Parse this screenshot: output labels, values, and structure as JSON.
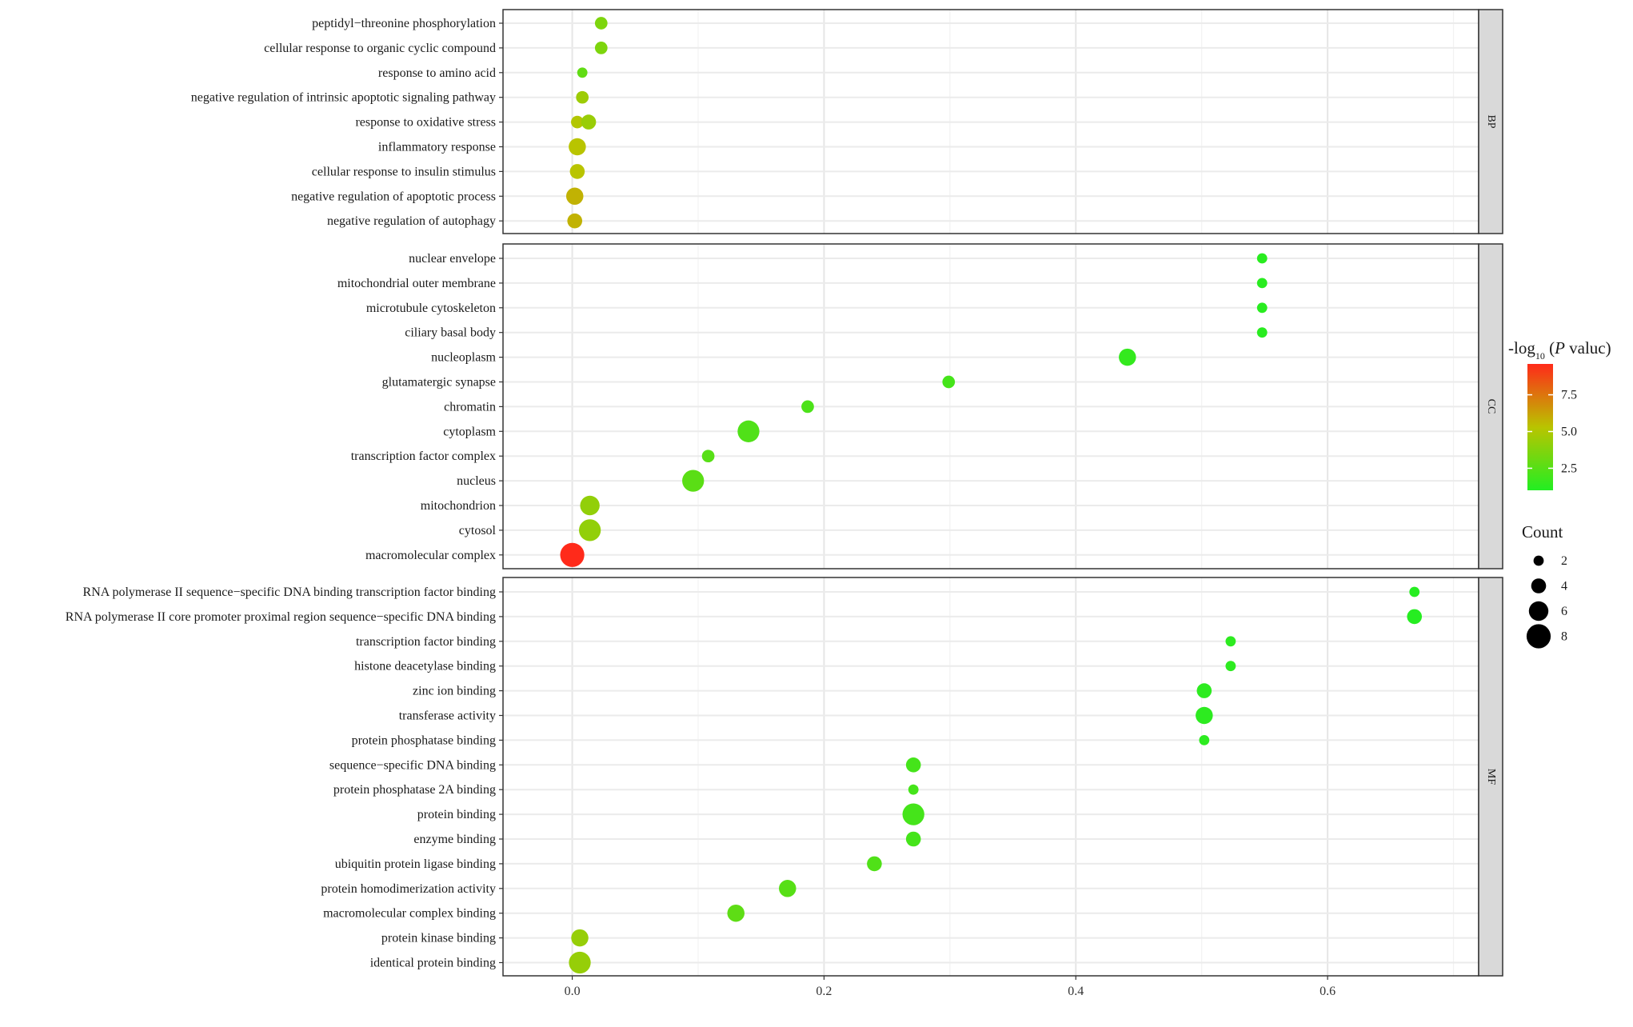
{
  "chart_data": {
    "type": "scatter",
    "xlim": [
      -0.055,
      0.72
    ],
    "x_ticks": [
      0.0,
      0.2,
      0.4,
      0.6
    ],
    "x_tick_labels": [
      "0.0",
      "0.2",
      "0.4",
      "0.6"
    ],
    "grid": true,
    "legend_placement": "right",
    "color_legend": {
      "title_prefix": "-log",
      "title_subscript": "10",
      "title_open": " (",
      "title_italic": "P",
      "title_rest": " valuc)",
      "range": [
        1.0,
        9.6
      ],
      "ticks": [
        2.5,
        5.0,
        7.5
      ],
      "tick_labels": [
        "2.5",
        "5.0",
        "7.5"
      ],
      "low_color": "#22ee22",
      "mid_color": "#b9c400",
      "high_color": "#ff2a1a"
    },
    "size_legend": {
      "title": "Count",
      "values": [
        2,
        4,
        6,
        8
      ],
      "labels": [
        "2",
        "4",
        "6",
        "8"
      ]
    },
    "panels": [
      {
        "strip": "BP",
        "terms": [
          {
            "label": "peptidyl−threonine phosphorylation",
            "points": [
              {
                "x": 0.023,
                "count": 3,
                "logp": 3.6
              }
            ]
          },
          {
            "label": "cellular response to organic cyclic compound",
            "points": [
              {
                "x": 0.023,
                "count": 3,
                "logp": 3.6
              }
            ]
          },
          {
            "label": "response to amino acid",
            "points": [
              {
                "x": 0.008,
                "count": 2,
                "logp": 2.8
              }
            ]
          },
          {
            "label": "negative regulation of intrinsic apoptotic signaling pathway",
            "points": [
              {
                "x": 0.008,
                "count": 3,
                "logp": 4.5
              }
            ]
          },
          {
            "label": "response to oxidative stress",
            "points": [
              {
                "x": 0.004,
                "count": 3,
                "logp": 5.1
              },
              {
                "x": 0.013,
                "count": 4,
                "logp": 4.4
              }
            ]
          },
          {
            "label": "inflammatory response",
            "points": [
              {
                "x": 0.004,
                "count": 5,
                "logp": 5.3
              }
            ]
          },
          {
            "label": "cellular response to insulin stimulus",
            "points": [
              {
                "x": 0.004,
                "count": 4,
                "logp": 5.3
              }
            ]
          },
          {
            "label": "negative regulation of apoptotic process",
            "points": [
              {
                "x": 0.002,
                "count": 5,
                "logp": 5.8
              }
            ]
          },
          {
            "label": "negative regulation of autophagy",
            "points": [
              {
                "x": 0.002,
                "count": 4,
                "logp": 5.8
              }
            ]
          }
        ]
      },
      {
        "strip": "CC",
        "terms": [
          {
            "label": "nuclear envelope",
            "points": [
              {
                "x": 0.548,
                "count": 2,
                "logp": 1.2
              }
            ]
          },
          {
            "label": "mitochondrial outer membrane",
            "points": [
              {
                "x": 0.548,
                "count": 2,
                "logp": 1.2
              }
            ]
          },
          {
            "label": "microtubule cytoskeleton",
            "points": [
              {
                "x": 0.548,
                "count": 2,
                "logp": 1.2
              }
            ]
          },
          {
            "label": "ciliary basal body",
            "points": [
              {
                "x": 0.548,
                "count": 2,
                "logp": 1.2
              }
            ]
          },
          {
            "label": "nucleoplasm",
            "points": [
              {
                "x": 0.441,
                "count": 5,
                "logp": 1.5
              }
            ]
          },
          {
            "label": "glutamatergic synapse",
            "points": [
              {
                "x": 0.299,
                "count": 3,
                "logp": 2.0
              }
            ]
          },
          {
            "label": "chromatin",
            "points": [
              {
                "x": 0.187,
                "count": 3,
                "logp": 2.2
              }
            ]
          },
          {
            "label": "cytoplasm",
            "points": [
              {
                "x": 0.14,
                "count": 7,
                "logp": 2.3
              }
            ]
          },
          {
            "label": "transcription factor complex",
            "points": [
              {
                "x": 0.108,
                "count": 3,
                "logp": 2.5
              }
            ]
          },
          {
            "label": "nucleus",
            "points": [
              {
                "x": 0.096,
                "count": 7,
                "logp": 2.6
              }
            ]
          },
          {
            "label": "mitochondrion",
            "points": [
              {
                "x": 0.014,
                "count": 6,
                "logp": 4.2
              }
            ]
          },
          {
            "label": "cytosol",
            "points": [
              {
                "x": 0.014,
                "count": 7,
                "logp": 4.2
              }
            ]
          },
          {
            "label": "macromolecular complex",
            "points": [
              {
                "x": 0.0,
                "count": 8,
                "logp": 9.6
              }
            ]
          }
        ]
      },
      {
        "strip": "MF",
        "terms": [
          {
            "label": "RNA polymerase II sequence−specific DNA binding transcription factor binding",
            "points": [
              {
                "x": 0.669,
                "count": 2,
                "logp": 1.1
              }
            ]
          },
          {
            "label": "RNA polymerase II core promoter proximal region sequence−specific DNA binding",
            "points": [
              {
                "x": 0.669,
                "count": 4,
                "logp": 1.1
              }
            ]
          },
          {
            "label": "transcription factor binding",
            "points": [
              {
                "x": 0.523,
                "count": 2,
                "logp": 1.3
              }
            ]
          },
          {
            "label": "histone deacetylase binding",
            "points": [
              {
                "x": 0.523,
                "count": 2,
                "logp": 1.3
              }
            ]
          },
          {
            "label": "zinc ion binding",
            "points": [
              {
                "x": 0.502,
                "count": 4,
                "logp": 1.3
              }
            ]
          },
          {
            "label": "transferase activity",
            "points": [
              {
                "x": 0.502,
                "count": 5,
                "logp": 1.3
              }
            ]
          },
          {
            "label": "protein phosphatase binding",
            "points": [
              {
                "x": 0.502,
                "count": 2,
                "logp": 1.3
              }
            ]
          },
          {
            "label": "sequence−specific DNA binding",
            "points": [
              {
                "x": 0.271,
                "count": 4,
                "logp": 2.0
              }
            ]
          },
          {
            "label": "protein phosphatase 2A binding",
            "points": [
              {
                "x": 0.271,
                "count": 2,
                "logp": 2.0
              }
            ]
          },
          {
            "label": "protein binding",
            "points": [
              {
                "x": 0.271,
                "count": 7,
                "logp": 2.0
              }
            ]
          },
          {
            "label": "enzyme binding",
            "points": [
              {
                "x": 0.271,
                "count": 4,
                "logp": 2.0
              }
            ]
          },
          {
            "label": "ubiquitin protein ligase binding",
            "points": [
              {
                "x": 0.24,
                "count": 4,
                "logp": 2.3
              }
            ]
          },
          {
            "label": "protein homodimerization activity",
            "points": [
              {
                "x": 0.171,
                "count": 5,
                "logp": 2.5
              }
            ]
          },
          {
            "label": "macromolecular complex binding",
            "points": [
              {
                "x": 0.13,
                "count": 5,
                "logp": 2.7
              }
            ]
          },
          {
            "label": "protein kinase binding",
            "points": [
              {
                "x": 0.006,
                "count": 5,
                "logp": 4.3
              }
            ]
          },
          {
            "label": "identical protein binding",
            "points": [
              {
                "x": 0.006,
                "count": 7,
                "logp": 4.3
              }
            ]
          }
        ]
      }
    ]
  }
}
